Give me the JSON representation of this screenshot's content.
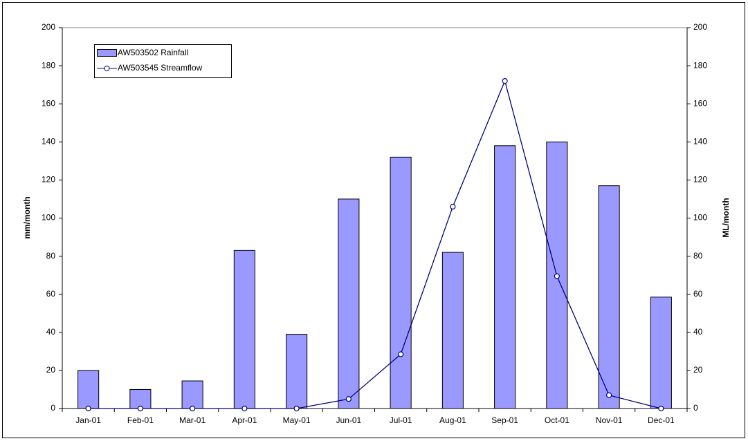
{
  "chart_data": {
    "type": "combo",
    "categories": [
      "Jan-01",
      "Feb-01",
      "Mar-01",
      "Apr-01",
      "May-01",
      "Jun-01",
      "Jul-01",
      "Aug-01",
      "Sep-01",
      "Oct-01",
      "Nov-01",
      "Dec-01"
    ],
    "series": [
      {
        "name": "AW503502 Rainfall",
        "type": "bar",
        "color": "#9999ff",
        "values": [
          20,
          10,
          14.5,
          83,
          39,
          110,
          132,
          82,
          138,
          140,
          117,
          58.5
        ]
      },
      {
        "name": "AW503545 Streamflow",
        "type": "line",
        "color": "#000080",
        "axis": "y2",
        "values": [
          0,
          0,
          0,
          0,
          0,
          5,
          28.5,
          106,
          172,
          69.5,
          7,
          0
        ]
      }
    ],
    "y_label": "mm/month",
    "y2_label": "ML/month",
    "ylim": [
      0,
      200
    ],
    "yticks": [
      0,
      20,
      40,
      60,
      80,
      100,
      120,
      140,
      160,
      180,
      200
    ],
    "y2lim": [
      0,
      200
    ],
    "y2ticks": [
      0,
      20,
      40,
      60,
      80,
      100,
      120,
      140,
      160,
      180,
      200
    ],
    "legend": "top-left",
    "grid": false
  }
}
